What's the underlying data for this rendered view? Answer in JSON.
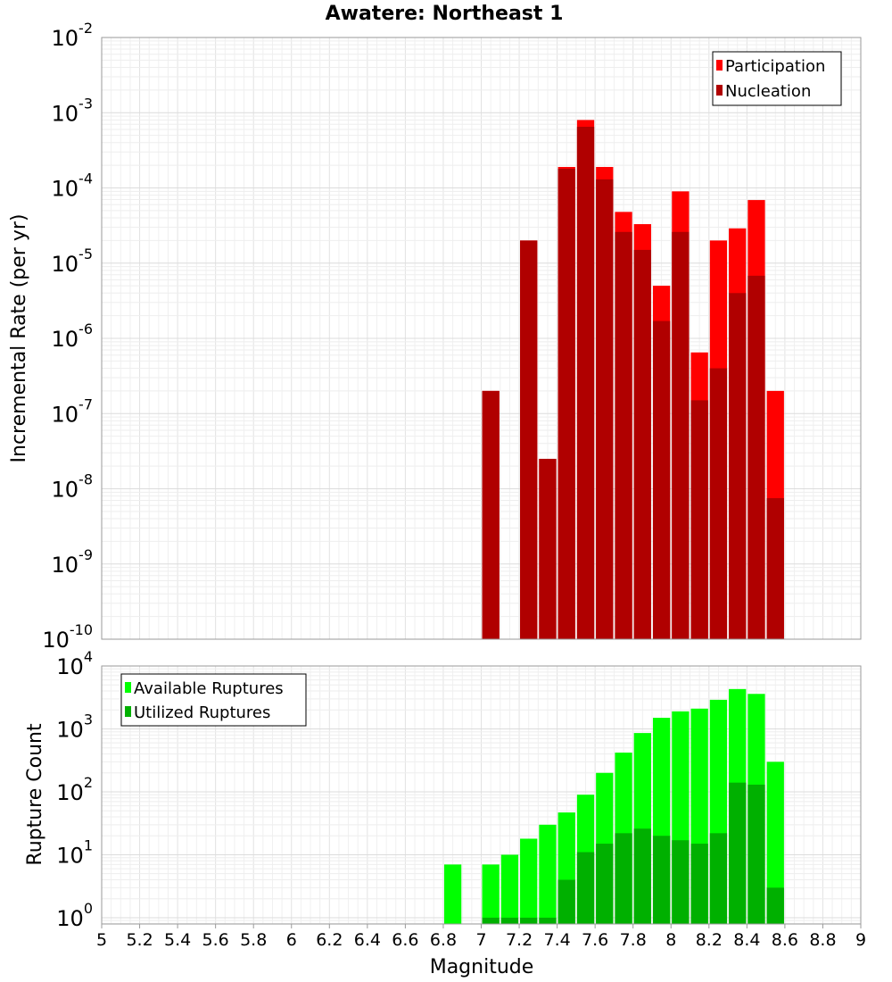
{
  "chart_data": [
    {
      "type": "bar",
      "title": "Awatere: Northeast 1",
      "xlabel": "",
      "ylabel": "Incremental Rate (per yr)",
      "log_y": true,
      "ylim_exponents": [
        -10,
        -2
      ],
      "xlim": [
        5,
        9
      ],
      "legend": {
        "placement": "top-right",
        "entries": [
          "Participation",
          "Nucleation"
        ]
      },
      "grid": true,
      "colors": {
        "Participation": "#ff0000",
        "Nucleation": "#b00000"
      },
      "x": [
        7.05,
        7.25,
        7.35,
        7.45,
        7.55,
        7.65,
        7.75,
        7.85,
        7.95,
        8.05,
        8.15,
        8.25,
        8.35,
        8.45,
        8.55
      ],
      "series": [
        {
          "name": "Participation",
          "values": [
            2e-07,
            2e-05,
            2.5e-08,
            0.00019,
            0.0008,
            0.00019,
            4.8e-05,
            3.3e-05,
            5e-06,
            9e-05,
            6.5e-07,
            2e-05,
            2.9e-05,
            6.9e-05,
            2e-07
          ]
        },
        {
          "name": "Nucleation",
          "values": [
            2e-07,
            2e-05,
            2.5e-08,
            0.00018,
            0.00065,
            0.00013,
            2.6e-05,
            1.5e-05,
            1.7e-06,
            2.6e-05,
            1.5e-07,
            4e-07,
            4e-06,
            6.8e-06,
            7.5e-09
          ]
        }
      ]
    },
    {
      "type": "bar",
      "title": "",
      "xlabel": "Magnitude",
      "ylabel": "Rupture Count",
      "log_y": true,
      "ylim_exponents": [
        -0.1,
        4
      ],
      "xlim": [
        5,
        9
      ],
      "legend": {
        "placement": "top-left",
        "entries": [
          "Available Ruptures",
          "Utilized Ruptures"
        ]
      },
      "grid": true,
      "colors": {
        "Available Ruptures": "#00ff00",
        "Utilized Ruptures": "#00b000"
      },
      "x": [
        6.85,
        7.05,
        7.15,
        7.25,
        7.35,
        7.45,
        7.55,
        7.65,
        7.75,
        7.85,
        7.95,
        8.05,
        8.15,
        8.25,
        8.35,
        8.45,
        8.55
      ],
      "series": [
        {
          "name": "Available Ruptures",
          "values": [
            7,
            7,
            10,
            18,
            30,
            47,
            90,
            200,
            420,
            860,
            1500,
            1900,
            2100,
            2900,
            4300,
            3600,
            300
          ]
        },
        {
          "name": "Utilized Ruptures",
          "values": [
            0,
            1,
            1,
            1,
            1,
            4,
            11,
            15,
            22,
            26,
            20,
            17,
            15,
            22,
            140,
            130,
            3
          ]
        }
      ],
      "x_ticks": [
        "5",
        "5.2",
        "5.4",
        "5.6",
        "5.8",
        "6",
        "6.2",
        "6.4",
        "6.6",
        "6.8",
        "7",
        "7.2",
        "7.4",
        "7.6",
        "7.8",
        "8",
        "8.2",
        "8.4",
        "8.6",
        "8.8",
        "9"
      ]
    }
  ]
}
